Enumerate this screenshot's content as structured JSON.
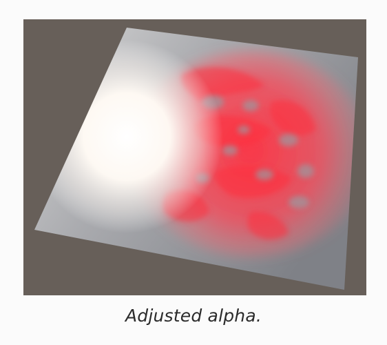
{
  "figure": {
    "caption": "Adjusted alpha.",
    "background_color": "#675f59",
    "plane_color": "#8a8c92",
    "highlight_color": "#ffffff",
    "smoke_color": "#ff3b48"
  }
}
